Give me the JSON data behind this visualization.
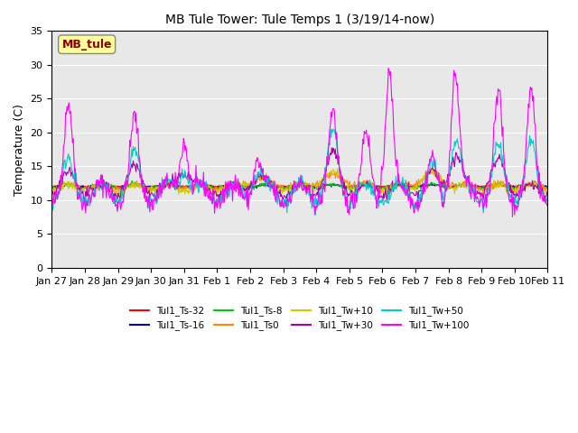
{
  "title": "MB Tule Tower: Tule Temps 1 (3/19/14-now)",
  "ylabel": "Temperature (C)",
  "ylim": [
    0,
    35
  ],
  "yticks": [
    0,
    5,
    10,
    15,
    20,
    25,
    30,
    35
  ],
  "legend_label": "MB_tule",
  "legend_text_color": "#8B0000",
  "legend_box_color": "#FFFF99",
  "series": [
    {
      "label": "Tul1_Ts-32",
      "color": "#FF0000"
    },
    {
      "label": "Tul1_Ts-16",
      "color": "#0000CC"
    },
    {
      "label": "Tul1_Ts-8",
      "color": "#00CC00"
    },
    {
      "label": "Tul1_Ts0",
      "color": "#FF8800"
    },
    {
      "label": "Tul1_Tw+10",
      "color": "#CCCC00"
    },
    {
      "label": "Tul1_Tw+30",
      "color": "#AA00AA"
    },
    {
      "label": "Tul1_Tw+50",
      "color": "#00CCCC"
    },
    {
      "label": "Tul1_Tw+100",
      "color": "#FF00FF"
    }
  ],
  "xtick_labels": [
    "Jan 27",
    "Jan 28",
    "Jan 29",
    "Jan 30",
    "Jan 31",
    "Feb 1",
    "Feb 2",
    "Feb 3",
    "Feb 4",
    "Feb 5",
    "Feb 6",
    "Feb 7",
    "Feb 8",
    "Feb 9",
    "Feb 10",
    "Feb 11"
  ],
  "n_days": 15,
  "pts_per_day": 48,
  "background_color": "#E8E8E8"
}
